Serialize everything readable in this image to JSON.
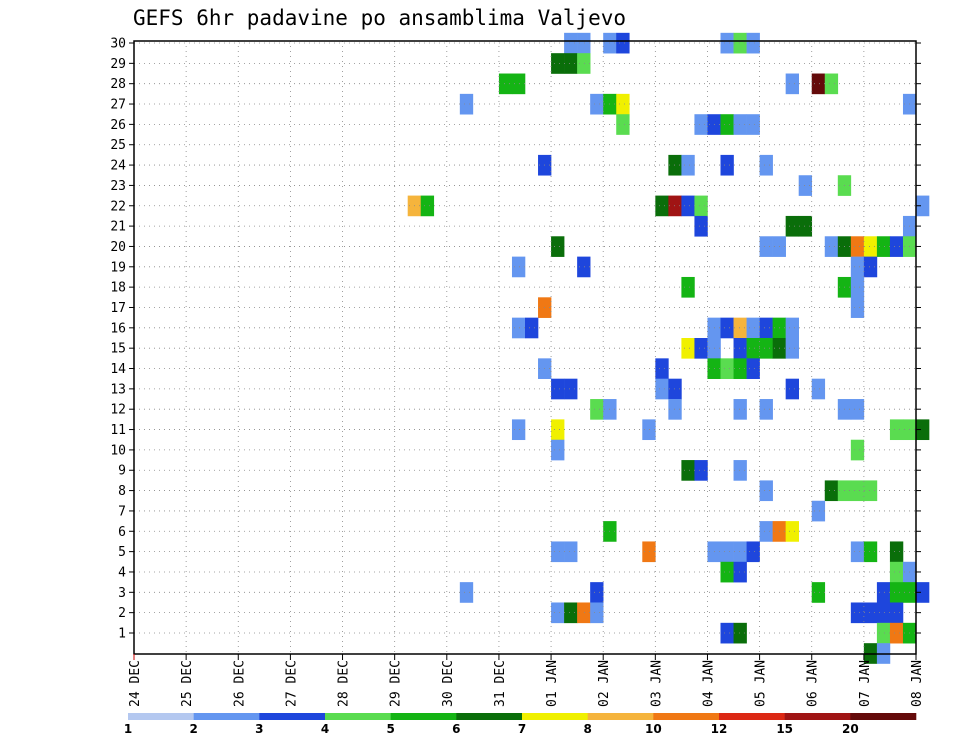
{
  "chart_data": {
    "type": "heatmap",
    "title": "GEFS 6hr padavine po ansamblima Valjevo",
    "y_ticks": [
      "1",
      "2",
      "3",
      "4",
      "5",
      "6",
      "7",
      "8",
      "9",
      "10",
      "11",
      "12",
      "13",
      "14",
      "15",
      "16",
      "17",
      "18",
      "19",
      "20",
      "21",
      "22",
      "23",
      "24",
      "25",
      "26",
      "27",
      "28",
      "29",
      "30"
    ],
    "x_ticks": [
      "24 DEC",
      "25 DEC",
      "26 DEC",
      "27 DEC",
      "28 DEC",
      "29 DEC",
      "30 DEC",
      "31 DEC",
      "01 JAN",
      "02 JAN",
      "03 JAN",
      "04 JAN",
      "05 JAN",
      "06 JAN",
      "07 JAN",
      "08 JAN"
    ],
    "x_unit": "6-hour step from 24 DEC 00Z",
    "colorbar": {
      "labels": [
        "1",
        "2",
        "3",
        "4",
        "5",
        "6",
        "7",
        "8",
        "10",
        "12",
        "15",
        "20"
      ],
      "colors": [
        "#b4c8f0",
        "#6496f0",
        "#1e46dc",
        "#5adc50",
        "#14b414",
        "#0a6e0a",
        "#f0f000",
        "#f5b43c",
        "#f07814",
        "#dc2814",
        "#a01414",
        "#640a0a"
      ]
    },
    "grid": true,
    "cells": [
      [
        30,
        33,
        1
      ],
      [
        30,
        34,
        1
      ],
      [
        30,
        36,
        1
      ],
      [
        30,
        37,
        2
      ],
      [
        30,
        45,
        1
      ],
      [
        30,
        46,
        3
      ],
      [
        30,
        47,
        1
      ],
      [
        29,
        32,
        5
      ],
      [
        29,
        33,
        5
      ],
      [
        29,
        34,
        3
      ],
      [
        28,
        28,
        4
      ],
      [
        28,
        29,
        4
      ],
      [
        28,
        50,
        1
      ],
      [
        28,
        52,
        11
      ],
      [
        28,
        53,
        3
      ],
      [
        27,
        25,
        1
      ],
      [
        27,
        35,
        1
      ],
      [
        27,
        36,
        4
      ],
      [
        27,
        37,
        6
      ],
      [
        27,
        59,
        1
      ],
      [
        26,
        37,
        3
      ],
      [
        26,
        43,
        1
      ],
      [
        26,
        44,
        2
      ],
      [
        26,
        45,
        4
      ],
      [
        26,
        46,
        1
      ],
      [
        26,
        47,
        1
      ],
      [
        24,
        31,
        2
      ],
      [
        24,
        41,
        5
      ],
      [
        24,
        42,
        1
      ],
      [
        24,
        45,
        2
      ],
      [
        24,
        48,
        1
      ],
      [
        23,
        51,
        1
      ],
      [
        23,
        54,
        3
      ],
      [
        22,
        21,
        7
      ],
      [
        22,
        22,
        4
      ],
      [
        22,
        40,
        5
      ],
      [
        22,
        41,
        10
      ],
      [
        22,
        42,
        2
      ],
      [
        22,
        43,
        3
      ],
      [
        22,
        60,
        1
      ],
      [
        21,
        43,
        2
      ],
      [
        21,
        50,
        5
      ],
      [
        21,
        51,
        5
      ],
      [
        21,
        59,
        1
      ],
      [
        20,
        32,
        5
      ],
      [
        20,
        48,
        1
      ],
      [
        20,
        49,
        1
      ],
      [
        20,
        53,
        1
      ],
      [
        20,
        54,
        5
      ],
      [
        20,
        55,
        8
      ],
      [
        20,
        56,
        6
      ],
      [
        20,
        57,
        4
      ],
      [
        20,
        58,
        2
      ],
      [
        20,
        59,
        3
      ],
      [
        19,
        29,
        1
      ],
      [
        19,
        34,
        2
      ],
      [
        19,
        55,
        1
      ],
      [
        19,
        56,
        2
      ],
      [
        18,
        42,
        4
      ],
      [
        18,
        54,
        4
      ],
      [
        18,
        55,
        1
      ],
      [
        17,
        31,
        8
      ],
      [
        17,
        55,
        1
      ],
      [
        16,
        29,
        1
      ],
      [
        16,
        30,
        2
      ],
      [
        16,
        44,
        1
      ],
      [
        16,
        45,
        2
      ],
      [
        16,
        46,
        7
      ],
      [
        16,
        47,
        1
      ],
      [
        16,
        48,
        2
      ],
      [
        16,
        49,
        4
      ],
      [
        16,
        50,
        1
      ],
      [
        15,
        42,
        6
      ],
      [
        15,
        43,
        2
      ],
      [
        15,
        44,
        1
      ],
      [
        15,
        46,
        2
      ],
      [
        15,
        47,
        4
      ],
      [
        15,
        48,
        4
      ],
      [
        15,
        49,
        5
      ],
      [
        15,
        50,
        1
      ],
      [
        14,
        31,
        1
      ],
      [
        14,
        40,
        2
      ],
      [
        14,
        44,
        4
      ],
      [
        14,
        45,
        3
      ],
      [
        14,
        46,
        4
      ],
      [
        14,
        47,
        2
      ],
      [
        13,
        32,
        2
      ],
      [
        13,
        33,
        2
      ],
      [
        13,
        40,
        1
      ],
      [
        13,
        41,
        2
      ],
      [
        13,
        50,
        2
      ],
      [
        13,
        52,
        1
      ],
      [
        12,
        35,
        3
      ],
      [
        12,
        36,
        1
      ],
      [
        12,
        41,
        1
      ],
      [
        12,
        46,
        1
      ],
      [
        12,
        48,
        1
      ],
      [
        12,
        54,
        1
      ],
      [
        12,
        55,
        1
      ],
      [
        11,
        29,
        1
      ],
      [
        11,
        32,
        6
      ],
      [
        11,
        39,
        1
      ],
      [
        11,
        58,
        3
      ],
      [
        11,
        59,
        3
      ],
      [
        11,
        60,
        5
      ],
      [
        10,
        32,
        1
      ],
      [
        10,
        55,
        3
      ],
      [
        9,
        42,
        5
      ],
      [
        9,
        43,
        2
      ],
      [
        9,
        46,
        1
      ],
      [
        8,
        48,
        1
      ],
      [
        8,
        53,
        5
      ],
      [
        8,
        54,
        3
      ],
      [
        8,
        55,
        3
      ],
      [
        8,
        56,
        3
      ],
      [
        7,
        52,
        1
      ],
      [
        6,
        36,
        4
      ],
      [
        6,
        48,
        1
      ],
      [
        6,
        49,
        8
      ],
      [
        6,
        50,
        6
      ],
      [
        5,
        32,
        1
      ],
      [
        5,
        33,
        1
      ],
      [
        5,
        39,
        8
      ],
      [
        5,
        44,
        1
      ],
      [
        5,
        45,
        1
      ],
      [
        5,
        46,
        1
      ],
      [
        5,
        47,
        2
      ],
      [
        5,
        55,
        1
      ],
      [
        5,
        56,
        4
      ],
      [
        5,
        58,
        5
      ],
      [
        4,
        45,
        4
      ],
      [
        4,
        46,
        2
      ],
      [
        4,
        58,
        3
      ],
      [
        4,
        59,
        1
      ],
      [
        3,
        25,
        1
      ],
      [
        3,
        35,
        2
      ],
      [
        3,
        52,
        4
      ],
      [
        3,
        57,
        2
      ],
      [
        3,
        58,
        4
      ],
      [
        3,
        59,
        4
      ],
      [
        3,
        60,
        2
      ],
      [
        2,
        32,
        1
      ],
      [
        2,
        33,
        5
      ],
      [
        2,
        34,
        8
      ],
      [
        2,
        35,
        1
      ],
      [
        2,
        55,
        2
      ],
      [
        2,
        56,
        2
      ],
      [
        2,
        57,
        2
      ],
      [
        2,
        58,
        2
      ],
      [
        1,
        45,
        2
      ],
      [
        1,
        46,
        5
      ],
      [
        1,
        57,
        3
      ],
      [
        1,
        58,
        8
      ],
      [
        1,
        59,
        4
      ],
      [
        0,
        56,
        5
      ],
      [
        0,
        57,
        1
      ]
    ]
  }
}
